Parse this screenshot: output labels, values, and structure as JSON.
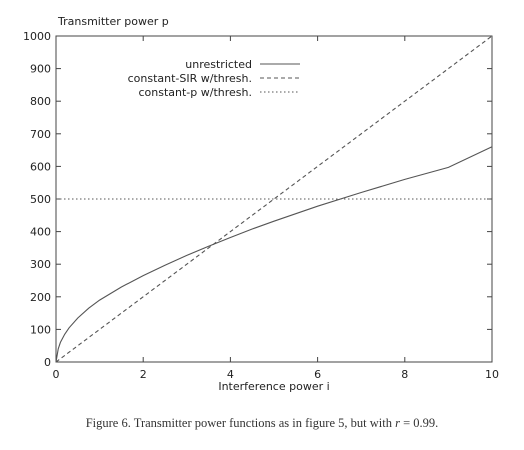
{
  "chart_data": {
    "type": "line",
    "ylabel": "Transmitter power p",
    "xlabel": "Interference power i",
    "xlim": [
      0,
      10
    ],
    "ylim": [
      0,
      1000
    ],
    "x_ticks": [
      "0",
      "2",
      "4",
      "6",
      "8",
      "10"
    ],
    "y_ticks": [
      "0",
      "100",
      "200",
      "300",
      "400",
      "500",
      "600",
      "700",
      "800",
      "900",
      "1000"
    ],
    "grid": false,
    "legend_position": "top-right",
    "series": [
      {
        "name": "unrestricted",
        "style": "solid",
        "x": [
          0,
          0.05,
          0.1,
          0.2,
          0.3,
          0.5,
          0.75,
          1,
          1.5,
          2,
          2.5,
          3,
          3.5,
          4,
          4.5,
          5,
          6,
          7,
          8,
          9,
          10
        ],
        "y": [
          0,
          40,
          60,
          85,
          105,
          135,
          165,
          190,
          230,
          265,
          297,
          327,
          355,
          382,
          408,
          432,
          478,
          520,
          560,
          597,
          660
        ]
      },
      {
        "name": "constant-SIR w/thresh.",
        "style": "dashed",
        "x": [
          0,
          10
        ],
        "y": [
          0,
          1000
        ]
      },
      {
        "name": "constant-p w/thresh.",
        "style": "dotted",
        "x": [
          0,
          10
        ],
        "y": [
          500,
          500
        ]
      }
    ],
    "caption": {
      "prefix": "Figure 6.  Transmitter power functions as in figure 5, but with ",
      "math": "r",
      "suffix": " = 0.99."
    }
  }
}
